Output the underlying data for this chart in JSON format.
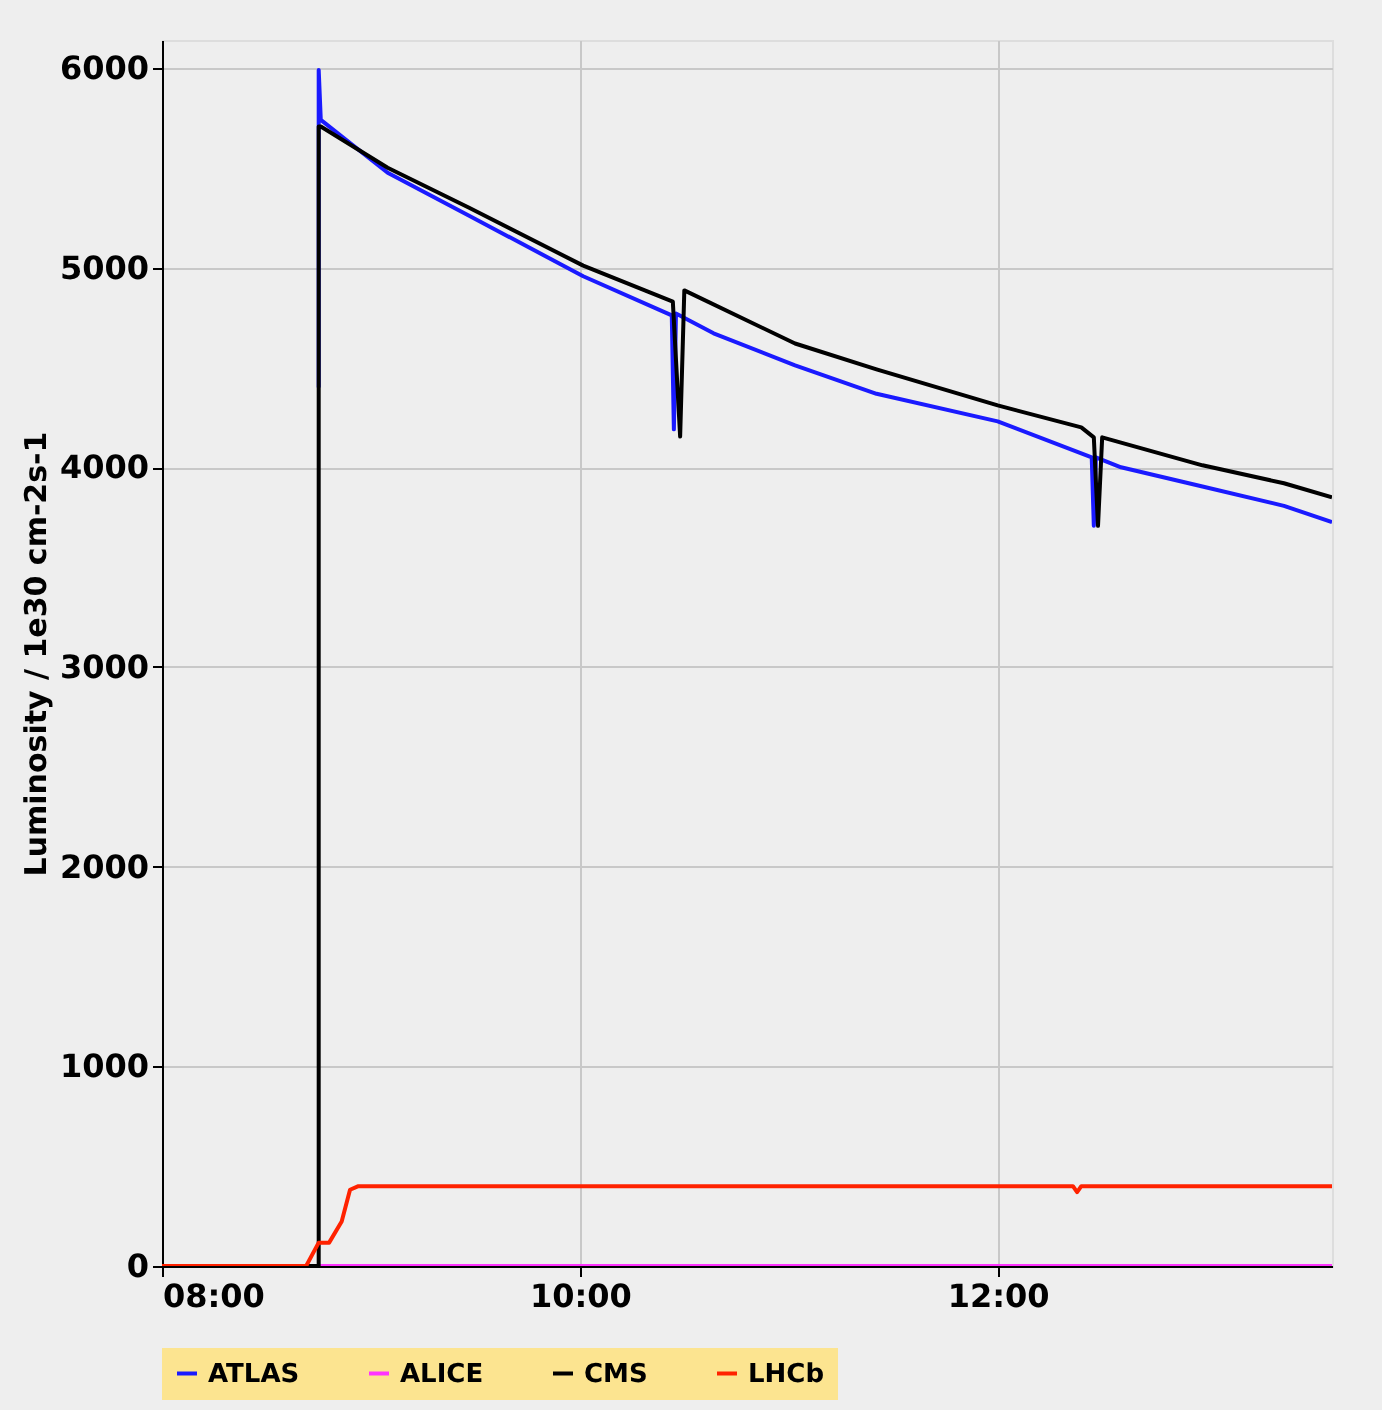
{
  "chart_data": {
    "type": "line",
    "ylabel": "Luminosity / 1e30 cm-2s-1",
    "xlim": [
      8,
      13.6
    ],
    "xticks": [
      {
        "value": 8,
        "label": "08:00"
      },
      {
        "value": 10,
        "label": "10:00"
      },
      {
        "value": 12,
        "label": "12:00"
      }
    ],
    "ylim": [
      0,
      6140
    ],
    "yticks": [
      0,
      1000,
      2000,
      3000,
      4000,
      5000,
      6000
    ],
    "grid": true,
    "legend": "bottom",
    "marker": "none",
    "line_style": "solid",
    "series": [
      {
        "name": "ATLAS",
        "color": "#1a1aff",
        "x": [
          8.75,
          8.75,
          8.76,
          9.08,
          9.47,
          10.016,
          10.44,
          10.45,
          10.46,
          10.64,
          11.03,
          11.42,
          12.0,
          12.45,
          12.46,
          12.47,
          12.59,
          12.98,
          13.37,
          13.6
        ],
        "values": [
          4400,
          5990,
          5740,
          5475,
          5260,
          4957,
          4761,
          4190,
          4770,
          4671,
          4511,
          4368,
          4230,
          4050,
          3707,
          4050,
          4000,
          3904,
          3807,
          3725
        ]
      },
      {
        "name": "ALICE",
        "color": "#ff33ff",
        "x": [
          8.0,
          13.6
        ],
        "values": [
          0,
          0
        ]
      },
      {
        "name": "CMS",
        "color": "#000000",
        "x": [
          8.0,
          8.75,
          8.75,
          8.76,
          9.08,
          9.47,
          10.016,
          10.445,
          10.48,
          10.5,
          11.03,
          11.42,
          12.0,
          12.4,
          12.46,
          12.48,
          12.5,
          12.98,
          13.37,
          13.6
        ],
        "values": [
          0,
          0,
          5707,
          5707,
          5500,
          5300,
          5010,
          4830,
          4154,
          4886,
          4620,
          4490,
          4310,
          4200,
          4150,
          3707,
          4150,
          4010,
          3920,
          3850
        ]
      },
      {
        "name": "LHCb",
        "color": "#ff2200",
        "x": [
          8.0,
          8.69,
          8.75,
          8.8,
          8.86,
          8.9,
          8.94,
          12.36,
          12.38,
          12.4,
          13.6
        ],
        "values": [
          0,
          0,
          117,
          117,
          223,
          382,
          400,
          400,
          370,
          400,
          400
        ]
      }
    ]
  }
}
